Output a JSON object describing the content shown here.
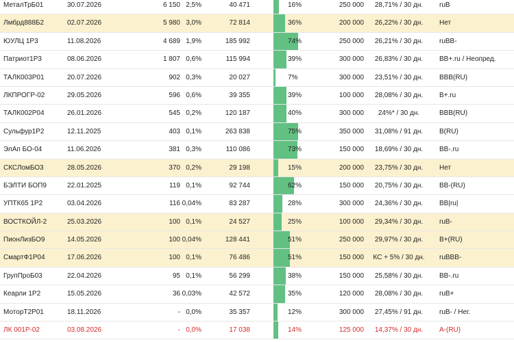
{
  "bar_color": "#62c083",
  "highlight_color": "#fcf1cf",
  "rows": [
    {
      "name": "МеталТрБ01",
      "date": "30.07.2026",
      "volume": "6 150",
      "pct": "2,5%",
      "sum": "40 471",
      "bar": "16%",
      "bar_value": 0.16,
      "nominal": "250 000",
      "coupon": "28,71% / 30 дн.",
      "rating": "ruB",
      "highlight": false,
      "red": false
    },
    {
      "name": "Лмбрд888Б2",
      "date": "02.07.2026",
      "volume": "5 980",
      "pct": "3,0%",
      "sum": "72 814",
      "bar": "36%",
      "bar_value": 0.36,
      "nominal": "200 000",
      "coupon": "26,22% / 30 дн.",
      "rating": "Нет",
      "highlight": true,
      "red": false
    },
    {
      "name": "ЮУЛЦ 1Р3",
      "date": "11.08.2026",
      "volume": "4 689",
      "pct": "1,9%",
      "sum": "185 992",
      "bar": "74%",
      "bar_value": 0.74,
      "nominal": "250 000",
      "coupon": "26,21% / 30 дн.",
      "rating": "ruBB-",
      "highlight": false,
      "red": false
    },
    {
      "name": "Патриот1Р3",
      "date": "08.06.2026",
      "volume": "1 807",
      "pct": "0,6%",
      "sum": "115 994",
      "bar": "39%",
      "bar_value": 0.39,
      "nominal": "300 000",
      "coupon": "26,83% / 30 дн.",
      "rating": "BB+.ru / Неопред.",
      "highlight": false,
      "red": false
    },
    {
      "name": "ТАЛК003Р01",
      "date": "20.07.2026",
      "volume": "902",
      "pct": "0,3%",
      "sum": "20 027",
      "bar": "7%",
      "bar_value": 0.07,
      "nominal": "300 000",
      "coupon": "23,51% / 30 дн.",
      "rating": "BBB(RU)",
      "highlight": false,
      "red": false
    },
    {
      "name": "ЛКПРОГР-02",
      "date": "29.05.2026",
      "volume": "596",
      "pct": "0,6%",
      "sum": "39 355",
      "bar": "39%",
      "bar_value": 0.39,
      "nominal": "100 000",
      "coupon": "28,08% / 30 дн.",
      "rating": "B+.ru",
      "highlight": false,
      "red": false
    },
    {
      "name": "ТАЛК002Р04",
      "date": "26.01.2026",
      "volume": "545",
      "pct": "0,2%",
      "sum": "120 187",
      "bar": "40%",
      "bar_value": 0.4,
      "nominal": "300 000",
      "coupon": "24%* / 30 дн.",
      "rating": "BBB(RU)",
      "highlight": false,
      "red": false
    },
    {
      "name": "Сульфур1Р2",
      "date": "12.11.2025",
      "volume": "403",
      "pct": "0,1%",
      "sum": "263 838",
      "bar": "75%",
      "bar_value": 0.75,
      "nominal": "350 000",
      "coupon": "31,08% / 91 дн.",
      "rating": "B(RU)",
      "highlight": false,
      "red": false
    },
    {
      "name": "ЭлАп БО-04",
      "date": "11.06.2026",
      "volume": "381",
      "pct": "0,3%",
      "sum": "110 086",
      "bar": "73%",
      "bar_value": 0.73,
      "nominal": "150 000",
      "coupon": "18,69% / 30 дн.",
      "rating": "BB-.ru",
      "highlight": false,
      "red": false
    },
    {
      "name": "СКСЛомБО3",
      "date": "28.05.2026",
      "volume": "370",
      "pct": "0,2%",
      "sum": "29 198",
      "bar": "15%",
      "bar_value": 0.15,
      "nominal": "200 000",
      "coupon": "23,75% / 30 дн.",
      "rating": "Нет",
      "highlight": true,
      "red": false
    },
    {
      "name": "БЭЛТИ БОП9",
      "date": "22.01.2025",
      "volume": "119",
      "pct": "0,1%",
      "sum": "92 744",
      "bar": "62%",
      "bar_value": 0.62,
      "nominal": "150 000",
      "coupon": "20,75% / 30 дн.",
      "rating": "BB-(RU)",
      "highlight": false,
      "red": false
    },
    {
      "name": "УПТК65 1Р2",
      "date": "03.04.2026",
      "volume": "116",
      "pct": "0,04%",
      "sum": "83 287",
      "bar": "28%",
      "bar_value": 0.28,
      "nominal": "300 000",
      "coupon": "24,36% / 30 дн.",
      "rating": "BB|ru|",
      "highlight": false,
      "red": false
    },
    {
      "name": "ВОСТКОЙЛ-2",
      "date": "25.03.2026",
      "volume": "100",
      "pct": "0,1%",
      "sum": "24 527",
      "bar": "25%",
      "bar_value": 0.25,
      "nominal": "100 000",
      "coupon": "29,34% / 30 дн.",
      "rating": "ruB-",
      "highlight": true,
      "red": false
    },
    {
      "name": "ПионЛизБО9",
      "date": "14.05.2026",
      "volume": "100",
      "pct": "0,04%",
      "sum": "128 441",
      "bar": "51%",
      "bar_value": 0.51,
      "nominal": "250 000",
      "coupon": "29,97% / 30 дн.",
      "rating": "B+(RU)",
      "highlight": true,
      "red": false
    },
    {
      "name": "СмартФ1Р04",
      "date": "17.06.2026",
      "volume": "100",
      "pct": "0,1%",
      "sum": "76 486",
      "bar": "51%",
      "bar_value": 0.51,
      "nominal": "150 000",
      "coupon": "КС + 5% / 30 дн.",
      "rating": "ruBBB-",
      "highlight": true,
      "red": false
    },
    {
      "name": "ГрупПроБ03",
      "date": "22.04.2026",
      "volume": "95",
      "pct": "0,1%",
      "sum": "56 299",
      "bar": "38%",
      "bar_value": 0.38,
      "nominal": "150 000",
      "coupon": "25,58% / 30 дн.",
      "rating": "BB-.ru",
      "highlight": false,
      "red": false
    },
    {
      "name": "Кеарли 1Р2",
      "date": "15.05.2026",
      "volume": "36",
      "pct": "0,03%",
      "sum": "42 572",
      "bar": "35%",
      "bar_value": 0.35,
      "nominal": "120 000",
      "coupon": "28,08% / 30 дн.",
      "rating": "ruB+",
      "highlight": false,
      "red": false
    },
    {
      "name": "МоторТ2Р01",
      "date": "18.11.2026",
      "volume": "-",
      "pct": "0,0%",
      "sum": "35 357",
      "bar": "12%",
      "bar_value": 0.12,
      "nominal": "300 000",
      "coupon": "27,45% / 91 дн.",
      "rating": "ruB- / Нег.",
      "highlight": false,
      "red": false
    },
    {
      "name": "ЛК 001Р-02",
      "date": "03.08.2026",
      "volume": "-",
      "pct": "0,0%",
      "sum": "17 038",
      "bar": "14%",
      "bar_value": 0.14,
      "nominal": "125 000",
      "coupon": "14,37% / 30 дн.",
      "rating": "A-(RU)",
      "highlight": false,
      "red": true
    }
  ]
}
